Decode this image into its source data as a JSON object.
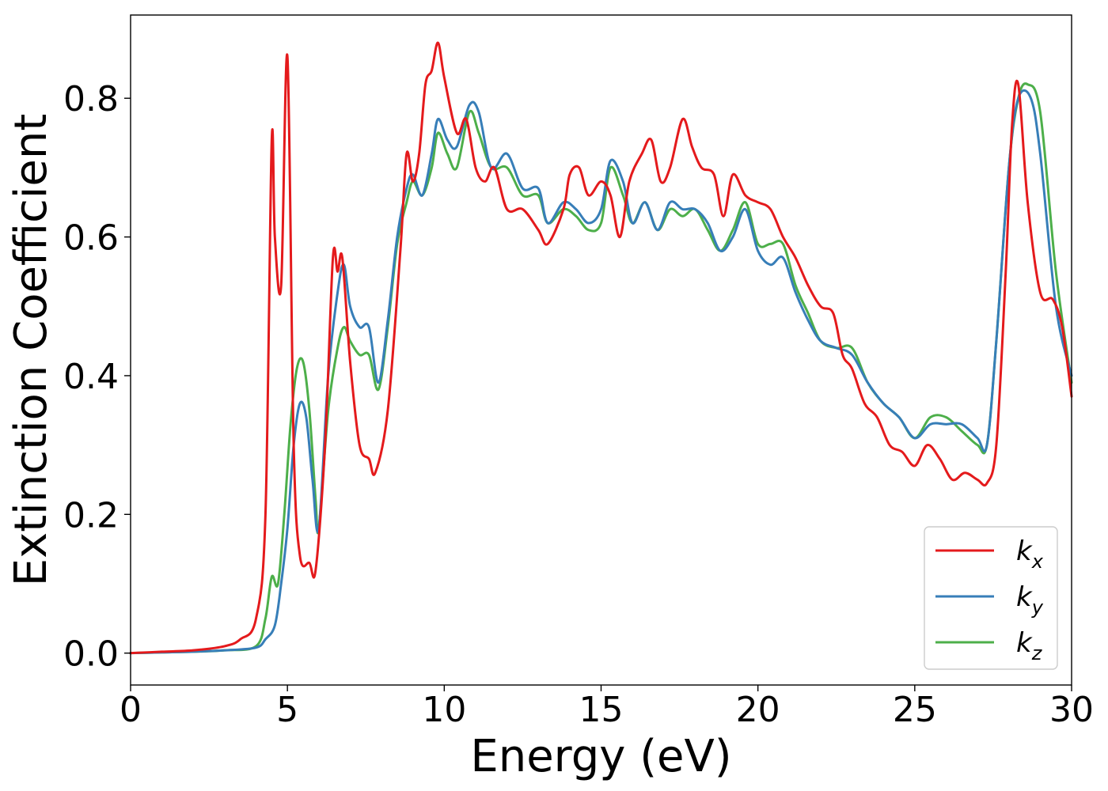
{
  "chart_data": {
    "type": "line",
    "title": "",
    "xlabel": "Energy (eV)",
    "ylabel": "Extinction Coefficient",
    "xlim": [
      0,
      30
    ],
    "ylim": [
      -0.046,
      0.92
    ],
    "xticks": [
      0,
      5,
      10,
      15,
      20,
      25,
      30
    ],
    "xtick_labels": [
      "0",
      "5",
      "10",
      "15",
      "20",
      "25",
      "30"
    ],
    "yticks": [
      0.0,
      0.2,
      0.4,
      0.6,
      0.8
    ],
    "ytick_labels": [
      "0.0",
      "0.2",
      "0.4",
      "0.6",
      "0.8"
    ],
    "grid": false,
    "legend_position": "lower-right",
    "series": [
      {
        "name": "k_x",
        "label_main": "k",
        "label_sub": "x",
        "color": "#e41a1c",
        "x": [
          0,
          1,
          2,
          3,
          3.5,
          4,
          4.3,
          4.5,
          4.6,
          4.8,
          5.0,
          5.2,
          5.4,
          5.7,
          5.9,
          6.2,
          6.45,
          6.6,
          6.75,
          7.0,
          7.3,
          7.6,
          7.8,
          8.2,
          8.6,
          8.8,
          9.0,
          9.2,
          9.4,
          9.6,
          9.8,
          10.0,
          10.4,
          10.7,
          11.0,
          11.3,
          11.6,
          12.0,
          12.5,
          13.0,
          13.3,
          13.8,
          14.0,
          14.3,
          14.6,
          15.0,
          15.3,
          15.6,
          15.9,
          16.3,
          16.6,
          16.9,
          17.2,
          17.6,
          17.9,
          18.2,
          18.6,
          18.9,
          19.2,
          19.6,
          20.0,
          20.4,
          20.8,
          21.2,
          21.6,
          22.0,
          22.4,
          22.7,
          23.0,
          23.4,
          23.8,
          24.2,
          24.6,
          25.0,
          25.4,
          25.8,
          26.2,
          26.6,
          27.0,
          27.3,
          27.6,
          27.9,
          28.1,
          28.3,
          28.6,
          29.0,
          29.4,
          29.7,
          30.0
        ],
        "y": [
          0.0,
          0.002,
          0.004,
          0.01,
          0.02,
          0.05,
          0.2,
          0.74,
          0.6,
          0.53,
          0.86,
          0.3,
          0.14,
          0.13,
          0.12,
          0.3,
          0.57,
          0.55,
          0.57,
          0.42,
          0.3,
          0.28,
          0.26,
          0.35,
          0.58,
          0.72,
          0.68,
          0.72,
          0.82,
          0.84,
          0.88,
          0.83,
          0.75,
          0.77,
          0.7,
          0.68,
          0.7,
          0.64,
          0.64,
          0.61,
          0.59,
          0.64,
          0.69,
          0.7,
          0.66,
          0.68,
          0.66,
          0.6,
          0.68,
          0.72,
          0.74,
          0.68,
          0.7,
          0.77,
          0.73,
          0.7,
          0.69,
          0.63,
          0.69,
          0.66,
          0.65,
          0.64,
          0.6,
          0.57,
          0.53,
          0.5,
          0.49,
          0.43,
          0.41,
          0.36,
          0.34,
          0.3,
          0.29,
          0.27,
          0.3,
          0.28,
          0.25,
          0.26,
          0.25,
          0.245,
          0.3,
          0.55,
          0.76,
          0.82,
          0.65,
          0.52,
          0.51,
          0.47,
          0.37
        ]
      },
      {
        "name": "k_y",
        "label_main": "k",
        "label_sub": "y",
        "color": "#377eb8",
        "x": [
          0,
          1,
          2,
          3,
          4,
          4.3,
          4.6,
          4.8,
          5.0,
          5.2,
          5.4,
          5.6,
          5.8,
          6.0,
          6.3,
          6.6,
          6.8,
          7.0,
          7.3,
          7.6,
          7.9,
          8.2,
          8.5,
          8.8,
          9.0,
          9.3,
          9.6,
          9.8,
          10.1,
          10.4,
          10.8,
          11.1,
          11.5,
          12.0,
          12.5,
          13.0,
          13.3,
          13.8,
          14.2,
          14.6,
          15.0,
          15.3,
          15.7,
          16.0,
          16.4,
          16.8,
          17.2,
          17.6,
          18.0,
          18.4,
          18.8,
          19.2,
          19.6,
          20.0,
          20.4,
          20.8,
          21.2,
          21.6,
          22.0,
          22.5,
          23.0,
          23.5,
          24.0,
          24.5,
          25.0,
          25.5,
          26.0,
          26.5,
          27.0,
          27.3,
          27.6,
          28.0,
          28.3,
          28.7,
          29.0,
          29.5,
          30.0
        ],
        "y": [
          0.0,
          0.001,
          0.002,
          0.004,
          0.008,
          0.02,
          0.04,
          0.1,
          0.18,
          0.3,
          0.36,
          0.34,
          0.25,
          0.18,
          0.4,
          0.52,
          0.56,
          0.5,
          0.47,
          0.47,
          0.39,
          0.48,
          0.6,
          0.67,
          0.69,
          0.66,
          0.72,
          0.77,
          0.74,
          0.73,
          0.79,
          0.78,
          0.7,
          0.72,
          0.67,
          0.67,
          0.62,
          0.65,
          0.64,
          0.62,
          0.64,
          0.71,
          0.68,
          0.62,
          0.65,
          0.61,
          0.65,
          0.64,
          0.64,
          0.62,
          0.58,
          0.6,
          0.64,
          0.58,
          0.56,
          0.57,
          0.52,
          0.48,
          0.45,
          0.44,
          0.43,
          0.39,
          0.36,
          0.34,
          0.31,
          0.33,
          0.33,
          0.33,
          0.31,
          0.3,
          0.45,
          0.7,
          0.8,
          0.8,
          0.72,
          0.5,
          0.4
        ]
      },
      {
        "name": "k_z",
        "label_main": "k",
        "label_sub": "z",
        "color": "#4daf4a",
        "x": [
          0,
          1,
          2,
          3,
          4,
          4.3,
          4.5,
          4.7,
          4.9,
          5.1,
          5.3,
          5.5,
          5.7,
          5.9,
          6.0,
          6.3,
          6.6,
          6.8,
          7.0,
          7.3,
          7.6,
          7.9,
          8.2,
          8.5,
          8.8,
          9.0,
          9.3,
          9.6,
          9.8,
          10.1,
          10.4,
          10.8,
          11.1,
          11.5,
          12.0,
          12.5,
          13.0,
          13.3,
          13.8,
          14.2,
          14.6,
          15.0,
          15.3,
          15.7,
          16.0,
          16.4,
          16.8,
          17.2,
          17.6,
          18.0,
          18.4,
          18.8,
          19.2,
          19.6,
          20.0,
          20.4,
          20.8,
          21.2,
          21.6,
          22.0,
          22.5,
          23.0,
          23.5,
          24.0,
          24.5,
          25.0,
          25.5,
          26.0,
          26.5,
          27.0,
          27.3,
          27.6,
          28.0,
          28.3,
          28.6,
          29.0,
          29.5,
          30.0
        ],
        "y": [
          0.0,
          0.001,
          0.002,
          0.004,
          0.01,
          0.05,
          0.11,
          0.1,
          0.2,
          0.33,
          0.41,
          0.42,
          0.35,
          0.22,
          0.18,
          0.35,
          0.44,
          0.47,
          0.45,
          0.43,
          0.43,
          0.38,
          0.47,
          0.59,
          0.65,
          0.68,
          0.66,
          0.7,
          0.75,
          0.72,
          0.7,
          0.78,
          0.75,
          0.7,
          0.7,
          0.66,
          0.66,
          0.62,
          0.64,
          0.63,
          0.61,
          0.62,
          0.7,
          0.66,
          0.62,
          0.65,
          0.61,
          0.64,
          0.63,
          0.64,
          0.61,
          0.58,
          0.61,
          0.65,
          0.59,
          0.59,
          0.59,
          0.53,
          0.49,
          0.45,
          0.44,
          0.44,
          0.39,
          0.36,
          0.34,
          0.31,
          0.34,
          0.34,
          0.32,
          0.3,
          0.3,
          0.45,
          0.7,
          0.8,
          0.82,
          0.78,
          0.55,
          0.39
        ]
      }
    ]
  }
}
